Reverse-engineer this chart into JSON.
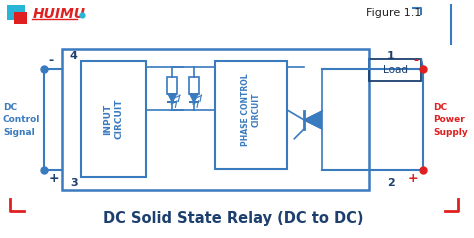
{
  "bg_color": "#ffffff",
  "title": "DC Solid State Relay (DC to DC)",
  "figure_label": "Figure 1.1",
  "logo_text": "HUIMU",
  "logo_color_red": "#e02020",
  "logo_color_blue": "#29b6d6",
  "dc_control_signal": "DC\nControl\nSignal",
  "dc_power_supply": "DC\nPower\nSupply",
  "input_circuit_text": "INPUT\nCIRCUIT",
  "phase_control_text": "PHASE CONTROL\nCIRCUIT",
  "load_text": "Load",
  "wire_color": "#3a7abf",
  "red_color": "#e02020",
  "dark_color": "#1c3f6e",
  "text_dark": "#222222"
}
